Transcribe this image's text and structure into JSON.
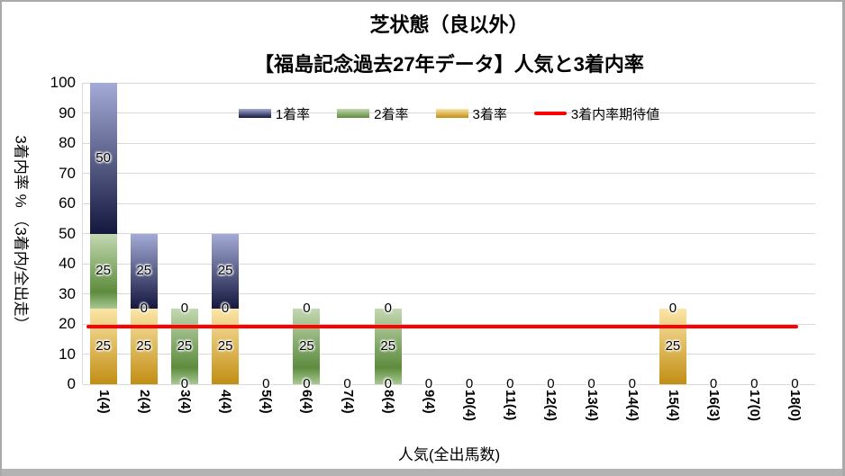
{
  "title": {
    "line1": "芝状態（良以外）",
    "line2": "【福島記念過去27年データ】人気と3着内率"
  },
  "colors": {
    "background": "#ffffff",
    "frame_border": "#a9a9a9",
    "bottom_strip": "#b3b3b3",
    "grid": "#d9d9d9",
    "text": "#000000",
    "expected_line": "#ff0000"
  },
  "chart_data": {
    "type": "bar",
    "stacked": true,
    "title": "芝状態（良以外）【福島記念過去27年データ】人気と3着内率",
    "xlabel": "人気(全出馬数)",
    "ylabel": "3着内率 % （3着内/全出走）",
    "ylim": [
      0,
      100
    ],
    "ytick_step": 10,
    "grid": true,
    "legend_position": "top",
    "categories": [
      "1(4)",
      "2(4)",
      "3(4)",
      "4(4)",
      "5(4)",
      "6(4)",
      "7(4)",
      "8(4)",
      "9(4)",
      "10(4)",
      "11(4)",
      "12(4)",
      "13(4)",
      "14(4)",
      "15(4)",
      "16(3)",
      "17(0)",
      "18(0)"
    ],
    "series": [
      {
        "name": "1着率",
        "stack_order": 3,
        "color_light": "#a3abd6",
        "color_dark": "#14173e",
        "values": [
          50,
          25,
          0,
          25,
          0,
          0,
          0,
          0,
          0,
          0,
          0,
          0,
          0,
          0,
          0,
          0,
          0,
          0
        ]
      },
      {
        "name": "2着率",
        "stack_order": 2,
        "color_light": "#c3d8b1",
        "color_dark": "#5d8c3e",
        "color_bottom": "#a9c893",
        "values": [
          25,
          0,
          25,
          0,
          0,
          25,
          0,
          25,
          0,
          0,
          0,
          0,
          0,
          0,
          0,
          0,
          0,
          0
        ]
      },
      {
        "name": "3着率",
        "stack_order": 1,
        "color_light": "#fbe6a8",
        "color_dark": "#c28e14",
        "values": [
          25,
          25,
          0,
          25,
          0,
          0,
          0,
          0,
          0,
          0,
          0,
          0,
          0,
          0,
          25,
          0,
          0,
          0
        ]
      }
    ],
    "line_series": {
      "name": "3着内率期待値",
      "color": "#ff0000",
      "value": 19
    }
  }
}
